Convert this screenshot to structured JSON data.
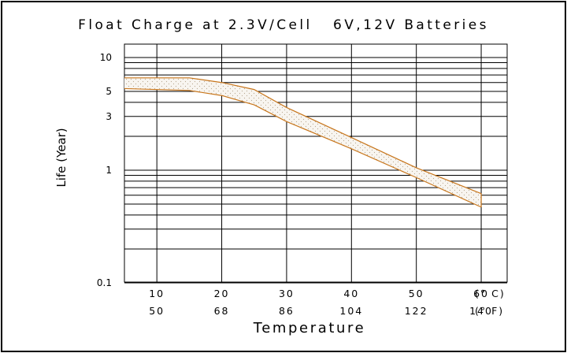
{
  "chart_data": {
    "type": "area",
    "title": "Float Charge at 2.3V/Cell   6V,12V Batteries",
    "ylabel": "Life (Year)",
    "xlabel": "Temperature",
    "yscale": "log",
    "ylim": [
      0.1,
      10
    ],
    "xlim": [
      5,
      64
    ],
    "grid": true,
    "yticks": [
      {
        "value": 10,
        "label": "10"
      },
      {
        "value": 5,
        "label": "5"
      },
      {
        "value": 3,
        "label": "3"
      },
      {
        "value": 1,
        "label": "1"
      },
      {
        "value": 0.1,
        "label": "0.1"
      }
    ],
    "xticks_c": [
      "10",
      "20",
      "30",
      "40",
      "50",
      "60"
    ],
    "xticks_f": [
      "50",
      "68",
      "86",
      "104",
      "122",
      "140"
    ],
    "x_tick_values": [
      10,
      20,
      30,
      40,
      50,
      60
    ],
    "x_unit_c": "(° C)",
    "x_unit_f": "(° F)",
    "vgrid_x": [
      10,
      20,
      30,
      40,
      50,
      60
    ],
    "series": [
      {
        "name": "",
        "role": "upper",
        "x": [
          5,
          15,
          20,
          25,
          30,
          40,
          50,
          60
        ],
        "y": [
          6.6,
          6.6,
          6.0,
          5.2,
          3.6,
          1.95,
          1.05,
          0.62
        ]
      },
      {
        "name": "",
        "role": "lower",
        "x": [
          5,
          15,
          20,
          25,
          30,
          40,
          50,
          60
        ],
        "y": [
          5.3,
          5.1,
          4.6,
          3.8,
          2.7,
          1.55,
          0.86,
          0.47
        ]
      }
    ],
    "band_color": "#c8761c",
    "band_fill": "#f8f5f0"
  }
}
